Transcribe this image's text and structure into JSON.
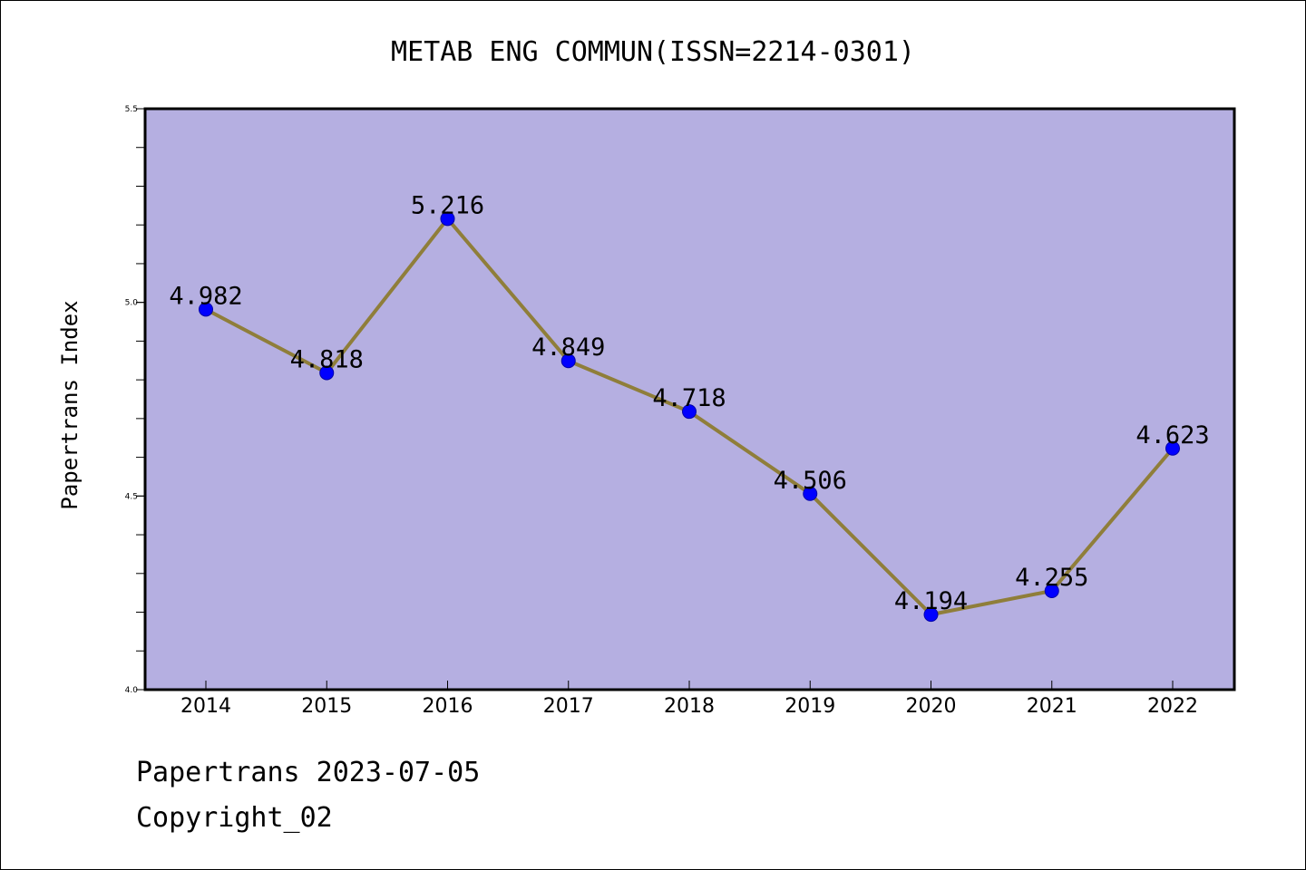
{
  "chart_data": {
    "type": "line",
    "title": "METAB ENG COMMUN(ISSN=2214-0301)",
    "xlabel": "",
    "ylabel": "Papertrans Index",
    "categories": [
      "2014",
      "2015",
      "2016",
      "2017",
      "2018",
      "2019",
      "2020",
      "2021",
      "2022"
    ],
    "values": [
      4.982,
      4.818,
      5.216,
      4.849,
      4.718,
      4.506,
      4.194,
      4.255,
      4.623
    ],
    "data_labels": [
      "4.982",
      "4.818",
      "5.216",
      "4.849",
      "4.718",
      "4.506",
      "4.194",
      "4.255",
      "4.623"
    ],
    "ylim": [
      4.0,
      5.5
    ],
    "yticks": [
      "4.0",
      "4.5",
      "5.0",
      "5.5"
    ],
    "y_minor_step": 0.1,
    "grid": false,
    "legend": "none",
    "colors": {
      "plot_background": "#b5afe1",
      "line": "#8f7e3a",
      "marker": "#0000ff",
      "marker_edge": "#0000aa"
    }
  },
  "footer": {
    "source": "Papertrans 2023-07-05",
    "copyright": "Copyright_02"
  }
}
